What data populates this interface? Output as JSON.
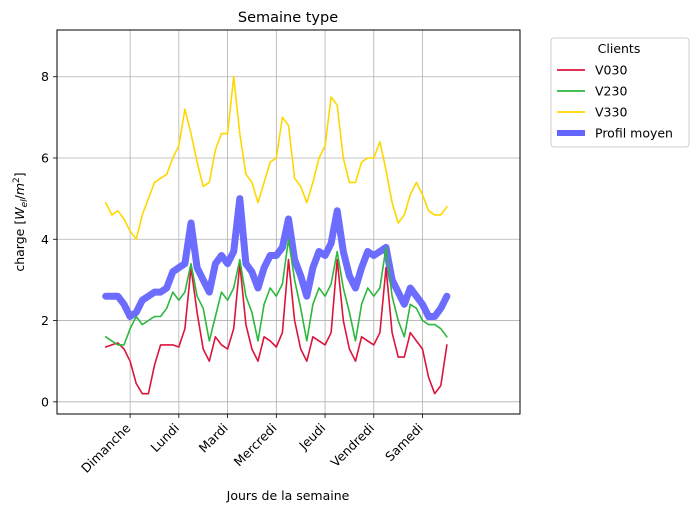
{
  "chart_data": {
    "type": "line",
    "title": "Semaine type",
    "xlabel": "Jours de la semaine",
    "ylabel": "charge [W_el/m^2]",
    "ylabel_main": "charge [",
    "ylabel_w": "W",
    "ylabel_sub": "el",
    "ylabel_slash": "/",
    "ylabel_m": "m",
    "ylabel_sup": "2",
    "ylabel_close": "]",
    "grid": true,
    "legend_position": "outside-right",
    "legend_title": "Clients",
    "x_range_hours": [
      -36,
      192
    ],
    "ylim": [
      -0.3,
      9.15
    ],
    "x_ticks": [
      {
        "hour": 0,
        "label": "Dimanche"
      },
      {
        "hour": 24,
        "label": "Lundi"
      },
      {
        "hour": 48,
        "label": "Mardi"
      },
      {
        "hour": 72,
        "label": "Mercredi"
      },
      {
        "hour": 96,
        "label": "Jeudi"
      },
      {
        "hour": 120,
        "label": "Vendredi"
      },
      {
        "hour": 144,
        "label": "Samedi"
      }
    ],
    "y_ticks": [
      0,
      2,
      4,
      6,
      8
    ],
    "x_hours": [
      -12,
      -9,
      -6,
      -3,
      0,
      3,
      6,
      9,
      12,
      15,
      18,
      21,
      24,
      27,
      30,
      33,
      36,
      39,
      42,
      45,
      48,
      51,
      54,
      57,
      60,
      63,
      66,
      69,
      72,
      75,
      78,
      81,
      84,
      87,
      90,
      93,
      96,
      99,
      102,
      105,
      108,
      111,
      114,
      117,
      120,
      123,
      126,
      129,
      132,
      135,
      138,
      141,
      144,
      147,
      150,
      153,
      156
    ],
    "series": [
      {
        "name": "V030",
        "color": "#dc143c",
        "values": [
          1.35,
          1.4,
          1.45,
          1.3,
          1.0,
          0.45,
          0.2,
          0.2,
          0.9,
          1.4,
          1.4,
          1.4,
          1.35,
          1.8,
          3.3,
          2.2,
          1.3,
          1.0,
          1.6,
          1.4,
          1.3,
          1.8,
          3.4,
          1.9,
          1.3,
          1.0,
          1.6,
          1.5,
          1.35,
          1.7,
          3.5,
          2.0,
          1.3,
          1.0,
          1.6,
          1.5,
          1.4,
          1.7,
          3.5,
          2.0,
          1.3,
          1.0,
          1.6,
          1.5,
          1.4,
          1.7,
          3.3,
          1.7,
          1.1,
          1.1,
          1.7,
          1.5,
          1.3,
          0.6,
          0.2,
          0.4,
          1.4
        ]
      },
      {
        "name": "V230",
        "color": "#2db83d",
        "values": [
          1.6,
          1.5,
          1.4,
          1.4,
          1.8,
          2.1,
          1.9,
          2.0,
          2.1,
          2.1,
          2.3,
          2.7,
          2.5,
          2.7,
          3.4,
          2.6,
          2.3,
          1.5,
          2.1,
          2.7,
          2.5,
          2.8,
          3.5,
          2.6,
          2.2,
          1.5,
          2.4,
          2.8,
          2.6,
          2.9,
          4.0,
          3.0,
          2.3,
          1.5,
          2.4,
          2.8,
          2.6,
          2.9,
          3.7,
          2.8,
          2.2,
          1.5,
          2.4,
          2.8,
          2.6,
          2.8,
          3.8,
          2.6,
          2.0,
          1.6,
          2.4,
          2.3,
          2.0,
          1.9,
          1.9,
          1.8,
          1.6
        ]
      },
      {
        "name": "V330",
        "color": "#ffd700",
        "values": [
          4.9,
          4.6,
          4.7,
          4.5,
          4.2,
          4.0,
          4.6,
          5.0,
          5.4,
          5.5,
          5.6,
          6.0,
          6.3,
          7.2,
          6.6,
          5.9,
          5.3,
          5.4,
          6.2,
          6.6,
          6.6,
          8.0,
          6.6,
          5.6,
          5.4,
          4.9,
          5.4,
          5.9,
          6.0,
          7.0,
          6.8,
          5.5,
          5.3,
          4.9,
          5.4,
          6.0,
          6.3,
          7.5,
          7.3,
          6.0,
          5.4,
          5.4,
          5.9,
          6.0,
          6.0,
          6.4,
          5.7,
          4.9,
          4.4,
          4.6,
          5.1,
          5.4,
          5.1,
          4.7,
          4.6,
          4.6,
          4.8
        ]
      },
      {
        "name": "Profil moyen",
        "color": "#6464ff",
        "values": [
          2.6,
          2.6,
          2.6,
          2.4,
          2.1,
          2.2,
          2.5,
          2.6,
          2.7,
          2.7,
          2.8,
          3.2,
          3.3,
          3.4,
          4.4,
          3.3,
          3.0,
          2.7,
          3.4,
          3.6,
          3.4,
          3.7,
          5.0,
          3.4,
          3.2,
          2.8,
          3.3,
          3.6,
          3.6,
          3.8,
          4.5,
          3.5,
          3.1,
          2.6,
          3.3,
          3.7,
          3.6,
          3.9,
          4.7,
          3.7,
          3.1,
          2.8,
          3.3,
          3.7,
          3.6,
          3.7,
          3.8,
          3.0,
          2.7,
          2.4,
          2.8,
          2.6,
          2.4,
          2.1,
          2.1,
          2.3,
          2.6
        ]
      }
    ]
  }
}
